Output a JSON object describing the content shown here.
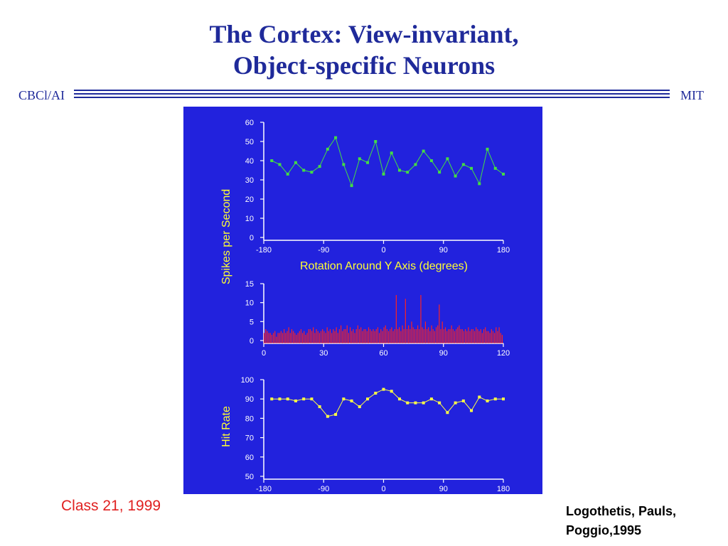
{
  "slide": {
    "title_line1": "The Cortex:  View-invariant,",
    "title_line2": "Object-specific Neurons",
    "header_left": "CBCl/AI",
    "header_right": "MIT",
    "footer_left": "Class 21, 1999",
    "citation_line1": "Logothetis, Pauls,",
    "citation_line2": "Poggio,1995"
  },
  "chart_data": [
    {
      "type": "line",
      "ylabel": "Spikes per Second",
      "xlabel": "Rotation Around Y Axis (degrees)",
      "xlim": [
        -180,
        180
      ],
      "ylim": [
        0,
        60
      ],
      "xticks": [
        -180,
        -90,
        0,
        90,
        180
      ],
      "yticks": [
        0,
        10,
        20,
        30,
        40,
        50,
        60
      ],
      "color": "#44dd44",
      "series": [
        {
          "x": [
            -168,
            -156,
            -144,
            -132,
            -120,
            -108,
            -96,
            -84,
            -72,
            -60,
            -48,
            -36,
            -24,
            -12,
            0,
            12,
            24,
            36,
            48,
            60,
            72,
            84,
            96,
            108,
            120,
            132,
            144,
            156,
            168,
            180
          ],
          "values": [
            40,
            38,
            33,
            39,
            35,
            34,
            37,
            46,
            52,
            38,
            27,
            41,
            39,
            50,
            33,
            44,
            35,
            34,
            38,
            45,
            40,
            34,
            41,
            32,
            38,
            36,
            28,
            46,
            36,
            33
          ]
        }
      ]
    },
    {
      "type": "bar",
      "xlim": [
        0,
        120
      ],
      "ylim": [
        0,
        15
      ],
      "xticks": [
        0,
        30,
        60,
        90,
        120
      ],
      "yticks": [
        0,
        5,
        10,
        15
      ],
      "color": "#ff2222",
      "values": [
        2,
        3,
        2.5,
        2,
        2,
        1.5,
        2,
        2.5,
        1,
        2,
        2,
        2.5,
        2,
        3,
        2,
        2.5,
        3.5,
        2,
        3,
        2.5,
        2,
        1.5,
        2,
        2.5,
        3,
        2,
        2.5,
        1.5,
        2,
        3,
        3,
        2.5,
        3.5,
        2,
        3,
        2.5,
        2,
        2.5,
        3,
        2.5,
        2,
        3.5,
        2.5,
        3,
        2,
        3,
        2.5,
        3.5,
        2,
        3,
        4,
        2.5,
        3,
        3,
        4,
        2,
        3.5,
        2.5,
        3,
        2,
        3,
        4,
        3,
        3.5,
        2.5,
        3,
        3,
        2.5,
        3.5,
        3,
        2.5,
        3,
        2.5,
        3,
        3.5,
        2,
        3,
        2.5,
        3.5,
        4,
        3,
        2.5,
        3,
        3.5,
        2.5,
        3,
        12,
        3,
        3.5,
        2.5,
        4,
        3,
        11,
        3,
        4,
        3,
        5,
        3.5,
        3,
        3,
        4,
        3,
        12,
        3.5,
        3,
        5,
        3,
        3.5,
        2.5,
        4,
        3,
        2.5,
        3.5,
        4,
        9.5,
        3,
        5,
        3,
        3.5,
        2.5,
        3,
        3,
        4,
        3,
        2.5,
        3,
        3.5,
        4,
        3,
        3,
        2.5,
        3,
        2.5,
        3.5,
        2.5,
        3,
        3,
        2.5,
        3.5,
        3,
        2.5,
        3,
        2,
        3,
        3.5,
        2.5,
        2.5,
        2,
        3,
        2.5,
        2,
        3.5,
        2.5,
        3.5,
        2,
        1.5
      ]
    },
    {
      "type": "line",
      "ylabel": "Hit Rate",
      "xlim": [
        -180,
        180
      ],
      "ylim": [
        50,
        100
      ],
      "xticks": [
        -180,
        -90,
        0,
        90,
        180
      ],
      "yticks": [
        50,
        60,
        70,
        80,
        90,
        100
      ],
      "color": "#ffff44",
      "series": [
        {
          "x": [
            -168,
            -156,
            -144,
            -132,
            -120,
            -108,
            -96,
            -84,
            -72,
            -60,
            -48,
            -36,
            -24,
            -12,
            0,
            12,
            24,
            36,
            48,
            60,
            72,
            84,
            96,
            108,
            120,
            132,
            144,
            156,
            168,
            180
          ],
          "values": [
            90,
            90,
            90,
            89,
            90,
            90,
            86,
            81,
            82,
            90,
            89,
            86,
            90,
            93,
            95,
            94,
            90,
            88,
            88,
            88,
            90,
            88,
            83,
            88,
            89,
            84,
            91,
            89,
            90,
            90
          ]
        }
      ]
    }
  ]
}
